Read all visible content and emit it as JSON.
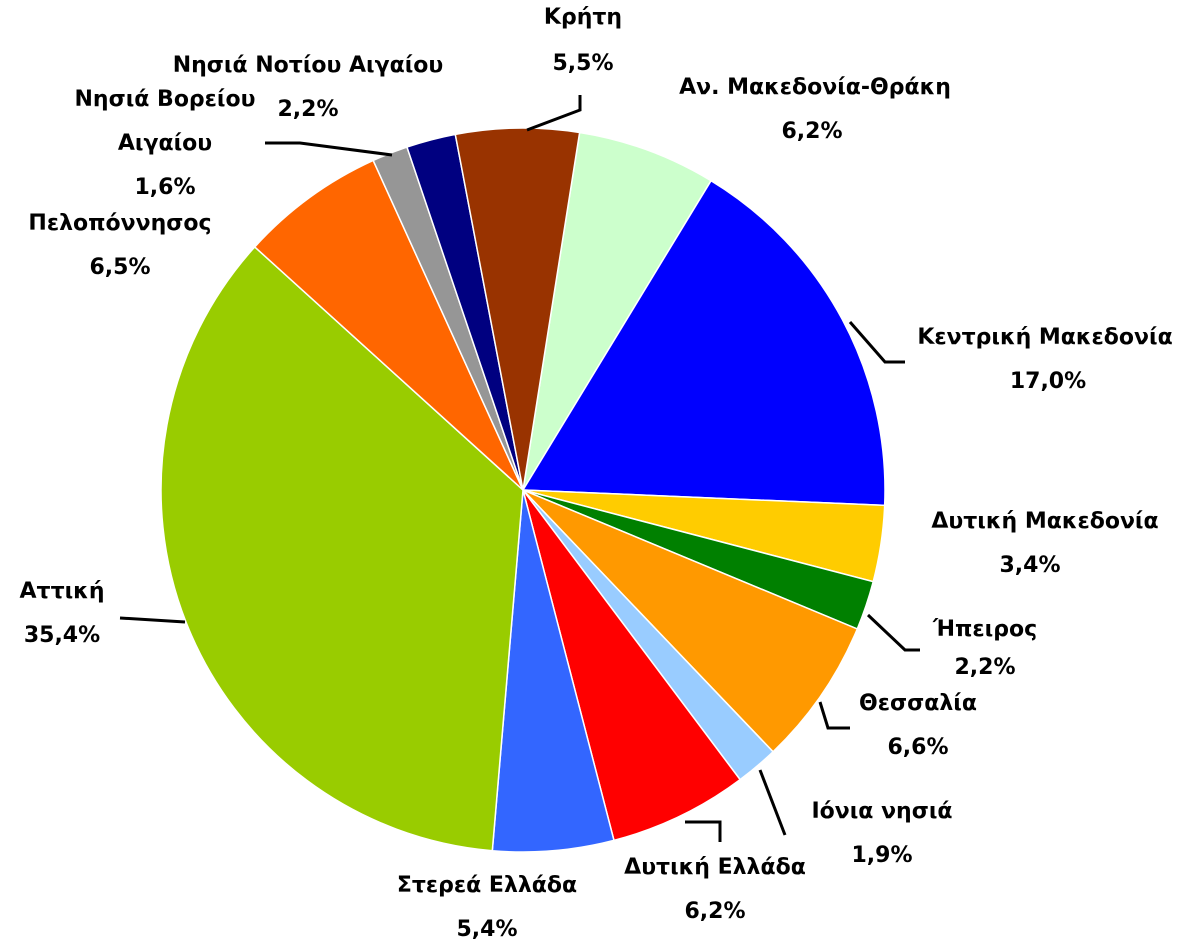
{
  "chart_data": {
    "type": "pie",
    "categories": [
      "Αν. Μακεδονία-Θράκη",
      "Κεντρική Μακεδονία",
      "Δυτική Μακεδονία",
      "Ήπειρος",
      "Θεσσαλία",
      "Ιόνια νησιά",
      "Δυτική Ελλάδα",
      "Στερεά Ελλάδα",
      "Αττική",
      "Πελοπόννησος",
      "Νησιά Βορείου Αιγαίου",
      "Νησιά Νοτίου Αιγαίου",
      "Κρήτη"
    ],
    "values": [
      6.2,
      17.0,
      3.4,
      2.2,
      6.6,
      1.9,
      6.2,
      5.4,
      35.4,
      6.5,
      1.6,
      2.2,
      5.5
    ],
    "value_labels": [
      "6,2%",
      "17,0%",
      "3,4%",
      "2,2%",
      "6,6%",
      "1,9%",
      "6,2%",
      "5,4%",
      "35,4%",
      "6,5%",
      "1,6%",
      "2,2%",
      "5,5%"
    ],
    "colors": [
      "#ccffcc",
      "#0000ff",
      "#ffcc00",
      "#008000",
      "#ff9900",
      "#99ccff",
      "#ff0000",
      "#3366ff",
      "#99cc00",
      "#ff6600",
      "#969696",
      "#000080",
      "#993300"
    ]
  }
}
